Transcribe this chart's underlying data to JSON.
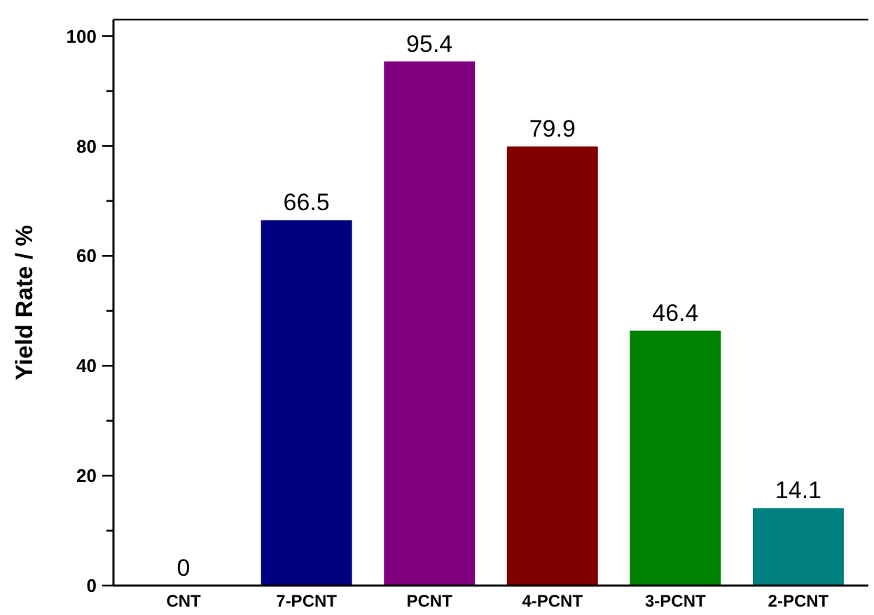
{
  "chart_data": {
    "type": "bar",
    "ylabel": "Yield Rate / %",
    "categories": [
      "CNT",
      "7-PCNT",
      "PCNT",
      "4-PCNT",
      "3-PCNT",
      "2-PCNT"
    ],
    "values": [
      0,
      66.5,
      95.4,
      79.9,
      46.4,
      14.1
    ],
    "colors": [
      "#000080",
      "#000080",
      "#800080",
      "#800000",
      "#008000",
      "#008080"
    ],
    "ylim": [
      0,
      103
    ],
    "yticks": [
      0,
      {
        "value": 10,
        "label": null
      },
      20,
      {
        "value": 30,
        "label": null
      },
      40,
      {
        "value": 50,
        "label": null
      },
      60,
      {
        "value": 70,
        "label": null
      },
      80,
      {
        "value": 90,
        "label": null
      },
      100
    ],
    "data_labels": true,
    "grid": false
  }
}
